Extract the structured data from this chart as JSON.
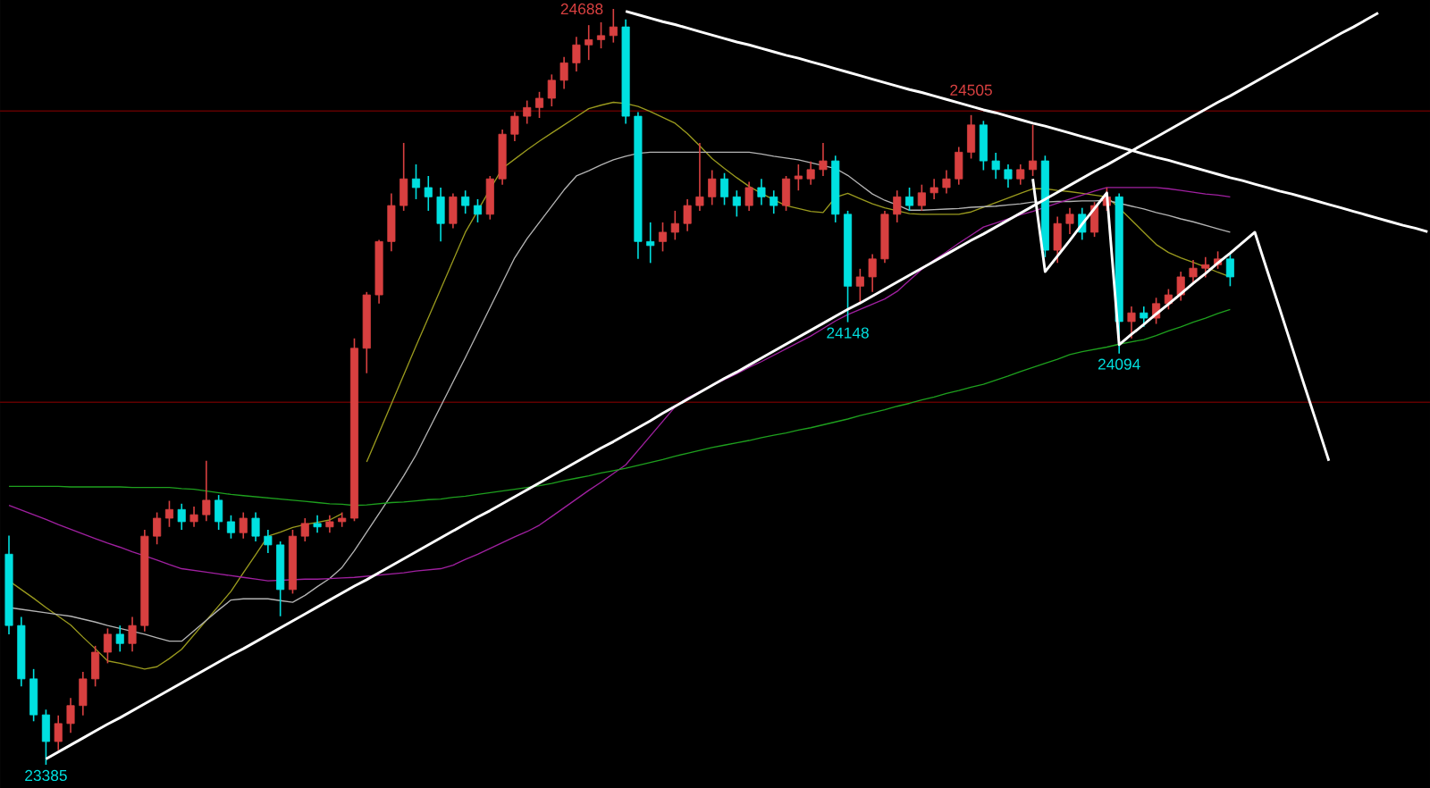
{
  "chart_data": {
    "type": "candlestick",
    "categories": [
      null,
      null,
      null,
      null,
      null,
      null,
      null,
      null,
      null,
      null,
      null,
      null,
      null,
      null,
      null,
      null,
      null,
      null,
      null,
      null,
      null,
      null,
      null,
      null,
      null,
      null,
      null,
      null,
      null,
      null,
      null,
      null,
      null,
      null,
      null,
      null,
      null,
      null,
      null,
      null,
      null,
      null,
      null,
      null,
      null,
      null,
      null,
      null,
      null,
      null,
      null,
      null,
      null,
      null,
      null,
      null,
      null,
      null,
      null,
      null,
      null,
      null,
      null,
      null,
      null,
      null,
      null,
      null,
      null,
      null,
      null,
      null,
      null,
      null,
      null,
      null,
      null,
      null,
      null,
      null,
      null,
      null,
      null,
      null,
      null,
      null,
      null,
      null,
      null,
      null,
      null,
      null,
      null,
      null,
      null,
      null,
      null,
      null,
      null,
      null,
      null,
      null,
      null,
      null,
      null,
      null,
      null,
      null,
      null,
      null,
      null,
      null,
      null,
      null,
      null,
      null
    ],
    "ohlc": [
      [
        23748,
        23780,
        23610,
        23625
      ],
      [
        23625,
        23640,
        23520,
        23533
      ],
      [
        23533,
        23550,
        23460,
        23471
      ],
      [
        23471,
        23480,
        23385,
        23425
      ],
      [
        23425,
        23470,
        23410,
        23456
      ],
      [
        23456,
        23500,
        23440,
        23487
      ],
      [
        23487,
        23545,
        23470,
        23533
      ],
      [
        23533,
        23590,
        23520,
        23579
      ],
      [
        23579,
        23620,
        23560,
        23610
      ],
      [
        23610,
        23625,
        23580,
        23594
      ],
      [
        23594,
        23640,
        23580,
        23625
      ],
      [
        23625,
        23790,
        23615,
        23779
      ],
      [
        23779,
        23820,
        23765,
        23810
      ],
      [
        23810,
        23840,
        23795,
        23825
      ],
      [
        23825,
        23835,
        23790,
        23804
      ],
      [
        23804,
        23830,
        23795,
        23816
      ],
      [
        23816,
        23909,
        23805,
        23841
      ],
      [
        23841,
        23850,
        23790,
        23804
      ],
      [
        23804,
        23815,
        23775,
        23785
      ],
      [
        23785,
        23820,
        23775,
        23810
      ],
      [
        23810,
        23820,
        23770,
        23779
      ],
      [
        23779,
        23790,
        23750,
        23764
      ],
      [
        23764,
        23770,
        23641,
        23687
      ],
      [
        23687,
        23790,
        23680,
        23779
      ],
      [
        23779,
        23810,
        23770,
        23801
      ],
      [
        23801,
        23815,
        23785,
        23795
      ],
      [
        23795,
        23815,
        23785,
        23804
      ],
      [
        23804,
        23820,
        23795,
        23810
      ],
      [
        23810,
        24120,
        23805,
        24103
      ],
      [
        24103,
        24200,
        24060,
        24195
      ],
      [
        24195,
        24290,
        24180,
        24287
      ],
      [
        24287,
        24370,
        24270,
        24349
      ],
      [
        24349,
        24457,
        24340,
        24395
      ],
      [
        24395,
        24420,
        24360,
        24380
      ],
      [
        24380,
        24400,
        24340,
        24364
      ],
      [
        24364,
        24380,
        24287,
        24318
      ],
      [
        24318,
        24370,
        24310,
        24364
      ],
      [
        24364,
        24375,
        24335,
        24349
      ],
      [
        24349,
        24360,
        24320,
        24334
      ],
      [
        24334,
        24400,
        24325,
        24395
      ],
      [
        24395,
        24480,
        24385,
        24472
      ],
      [
        24472,
        24510,
        24460,
        24503
      ],
      [
        24503,
        24530,
        24490,
        24518
      ],
      [
        24518,
        24545,
        24500,
        24534
      ],
      [
        24534,
        24575,
        24520,
        24565
      ],
      [
        24565,
        24605,
        24550,
        24595
      ],
      [
        24595,
        24640,
        24580,
        24626
      ],
      [
        24626,
        24660,
        24600,
        24635
      ],
      [
        24635,
        24665,
        24620,
        24642
      ],
      [
        24642,
        24688,
        24630,
        24657
      ],
      [
        24657,
        24670,
        24490,
        24503
      ],
      [
        24503,
        24510,
        24257,
        24287
      ],
      [
        24287,
        24320,
        24250,
        24280
      ],
      [
        24287,
        24320,
        24270,
        24303
      ],
      [
        24303,
        24340,
        24290,
        24318
      ],
      [
        24318,
        24360,
        24305,
        24349
      ],
      [
        24349,
        24457,
        24340,
        24364
      ],
      [
        24364,
        24410,
        24350,
        24395
      ],
      [
        24395,
        24405,
        24350,
        24364
      ],
      [
        24364,
        24375,
        24330,
        24349
      ],
      [
        24349,
        24390,
        24340,
        24380
      ],
      [
        24380,
        24395,
        24350,
        24364
      ],
      [
        24364,
        24375,
        24335,
        24349
      ],
      [
        24349,
        24400,
        24340,
        24395
      ],
      [
        24395,
        24420,
        24375,
        24400
      ],
      [
        24395,
        24425,
        24385,
        24411
      ],
      [
        24411,
        24457,
        24400,
        24426
      ],
      [
        24426,
        24435,
        24320,
        24334
      ],
      [
        24334,
        24340,
        24148,
        24210
      ],
      [
        24210,
        24240,
        24180,
        24226
      ],
      [
        24226,
        24265,
        24200,
        24257
      ],
      [
        24257,
        24340,
        24250,
        24334
      ],
      [
        24334,
        24375,
        24320,
        24364
      ],
      [
        24364,
        24380,
        24340,
        24349
      ],
      [
        24349,
        24385,
        24340,
        24371
      ],
      [
        24371,
        24395,
        24360,
        24380
      ],
      [
        24380,
        24410,
        24370,
        24395
      ],
      [
        24395,
        24450,
        24385,
        24441
      ],
      [
        24441,
        24505,
        24430,
        24488
      ],
      [
        24488,
        24495,
        24410,
        24426
      ],
      [
        24426,
        24440,
        24395,
        24411
      ],
      [
        24411,
        24420,
        24380,
        24395
      ],
      [
        24395,
        24420,
        24385,
        24411
      ],
      [
        24411,
        24488,
        24400,
        24426
      ],
      [
        24426,
        24435,
        24260,
        24272
      ],
      [
        24272,
        24330,
        24250,
        24318
      ],
      [
        24318,
        24345,
        24300,
        24334
      ],
      [
        24334,
        24345,
        24290,
        24303
      ],
      [
        24303,
        24355,
        24295,
        24349
      ],
      [
        24349,
        24380,
        24340,
        24364
      ],
      [
        24364,
        24370,
        24094,
        24149
      ],
      [
        24149,
        24175,
        24120,
        24164
      ],
      [
        24164,
        24175,
        24140,
        24155
      ],
      [
        24155,
        24190,
        24145,
        24180
      ],
      [
        24180,
        24205,
        24170,
        24195
      ],
      [
        24195,
        24235,
        24185,
        24226
      ],
      [
        24226,
        24255,
        24215,
        24241
      ],
      [
        24241,
        24260,
        24225,
        24247
      ],
      [
        24247,
        24270,
        24240,
        24257
      ],
      [
        24257,
        24265,
        24210,
        24226
      ],
      null,
      null,
      null,
      null,
      null,
      null,
      null,
      null,
      null,
      null,
      null,
      null,
      null,
      null,
      null,
      null
    ],
    "colors": [
      "#00e0e0",
      "#00e0e0",
      "#00e0e0",
      "#00e0e0",
      "#d84040",
      "#d84040",
      "#d84040",
      "#d84040",
      "#d84040",
      "#00e0e0",
      "#d84040",
      "#d84040",
      "#d84040",
      "#d84040",
      "#00e0e0",
      "#d84040",
      "#d84040",
      "#00e0e0",
      "#00e0e0",
      "#d84040",
      "#00e0e0",
      "#00e0e0",
      "#00e0e0",
      "#d84040",
      "#d84040",
      "#00e0e0",
      "#d84040",
      "#d84040",
      "#d84040",
      "#d84040",
      "#d84040",
      "#d84040",
      "#d84040",
      "#00e0e0",
      "#00e0e0",
      "#00e0e0",
      "#d84040",
      "#00e0e0",
      "#00e0e0",
      "#d84040",
      "#d84040",
      "#d84040",
      "#d84040",
      "#d84040",
      "#d84040",
      "#d84040",
      "#d84040",
      "#d84040",
      "#d84040",
      "#d84040",
      "#00e0e0",
      "#00e0e0",
      "#00e0e0",
      "#d84040",
      "#d84040",
      "#d84040",
      "#d84040",
      "#d84040",
      "#00e0e0",
      "#00e0e0",
      "#d84040",
      "#00e0e0",
      "#00e0e0",
      "#d84040",
      "#d84040",
      "#d84040",
      "#d84040",
      "#00e0e0",
      "#00e0e0",
      "#d84040",
      "#d84040",
      "#d84040",
      "#d84040",
      "#00e0e0",
      "#d84040",
      "#d84040",
      "#d84040",
      "#d84040",
      "#d84040",
      "#00e0e0",
      "#00e0e0",
      "#00e0e0",
      "#d84040",
      "#d84040",
      "#00e0e0",
      "#d84040",
      "#d84040",
      "#00e0e0",
      "#d84040",
      "#d84040",
      "#00e0e0",
      "#d84040",
      "#00e0e0",
      "#d84040",
      "#d84040",
      "#d84040",
      "#d84040",
      "#d84040",
      "#d84040",
      "#00e0e0",
      null,
      null,
      null,
      null,
      null,
      null,
      null,
      null,
      null,
      null,
      null,
      null,
      null,
      null,
      null,
      null
    ],
    "series": [
      {
        "type": "line",
        "color": "#9a9a1e",
        "values": [
          23702,
          23687,
          23672,
          23656,
          23641,
          23626,
          23605,
          23585,
          23564,
          23560,
          23555,
          23550,
          23554,
          23568,
          23584,
          23609,
          23634,
          23659,
          23684,
          23716,
          23747,
          23779,
          23786,
          23794,
          23799,
          23803,
          23807,
          23818,
          null,
          23907,
          23957,
          24007,
          24057,
          24107,
          24156,
          24205,
          24254,
          24303,
          24340,
          24377,
          24413,
          24429,
          24445,
          24460,
          24474,
          24488,
          24502,
          24516,
          24522,
          24527,
          24525,
          24520,
          24511,
          24501,
          24491,
          24473,
          24452,
          24430,
          24413,
          24397,
          24382,
          24370,
          24359,
          24349,
          24344,
          24339,
          24337,
          24363,
          24370,
          24361,
          24352,
          24345,
          24340,
          24335,
          24334,
          24334,
          24334,
          24334,
          24338,
          24346,
          24354,
          24362,
          24370,
          24378,
          24378,
          24375,
          24373,
          24370,
          24367,
          24364,
          24345,
          24324,
          24303,
          24282,
          24268,
          24259,
          24251,
          24243,
          24234,
          24226,
          null,
          null,
          null,
          null,
          null,
          null,
          null,
          null,
          null,
          null,
          null,
          null,
          null,
          null,
          null,
          null
        ]
      },
      {
        "type": "line",
        "color": "#b4b4b4",
        "values": [
          23656,
          23653,
          23650,
          23647,
          23644,
          23641,
          23636,
          23631,
          23625,
          23620,
          23615,
          23610,
          23604,
          23598,
          23598,
          23616,
          23634,
          23652,
          23669,
          23671,
          23671,
          23671,
          23668,
          23665,
          23677,
          23692,
          23706,
          23725,
          23754,
          23786,
          23818,
          23850,
          23883,
          23919,
          23961,
          24003,
          24045,
          24087,
          24130,
          24173,
          24216,
          24259,
          24292,
          24320,
          24348,
          24376,
          24400,
          24409,
          24419,
          24428,
          24434,
          24439,
          24441,
          24441,
          24441,
          24441,
          24441,
          24441,
          24441,
          24441,
          24441,
          24438,
          24434,
          24431,
          24428,
          24423,
          24418,
          24413,
          24401,
          24385,
          24369,
          24358,
          24350,
          24341,
          24341,
          24342,
          24343,
          24344,
          24346,
          24347,
          24348,
          24350,
          24352,
          24355,
          24355,
          24356,
          24356,
          24357,
          24357,
          24358,
          24353,
          24348,
          24343,
          24337,
          24332,
          24326,
          24321,
          24315,
          24309,
          24303,
          null,
          null,
          null,
          null,
          null,
          null,
          null,
          null,
          null,
          null,
          null,
          null,
          null,
          null,
          null,
          null
        ]
      },
      {
        "type": "line",
        "color": "#a020a0",
        "values": [
          23832,
          23824,
          23816,
          23808,
          23799,
          23791,
          23783,
          23775,
          23767,
          23760,
          23752,
          23745,
          23738,
          23730,
          23723,
          23720,
          23717,
          23714,
          23711,
          23708,
          23705,
          23702,
          23703,
          23704,
          23705,
          23705,
          23706,
          23707,
          23708,
          23710,
          23712,
          23714,
          23716,
          23719,
          23721,
          23723,
          23729,
          23739,
          23748,
          23758,
          23768,
          23778,
          23787,
          23798,
          23813,
          23828,
          23843,
          23858,
          23872,
          23887,
          23902,
          23927,
          23952,
          23977,
          24002,
          24017,
          24028,
          24039,
          24049,
          24059,
          24070,
          24080,
          24091,
          24102,
          24113,
          24124,
          24137,
          24150,
          24161,
          24170,
          24179,
          24188,
          24201,
          24220,
          24239,
          24255,
          24269,
          24284,
          24298,
          24312,
          24319,
          24326,
          24333,
          24339,
          24346,
          24353,
          24360,
          24367,
          24374,
          24380,
          24380,
          24380,
          24380,
          24380,
          24378,
          24375,
          24372,
          24369,
          24367,
          24364,
          null,
          null,
          null,
          null,
          null,
          null,
          null,
          null,
          null,
          null,
          null,
          null,
          null,
          null,
          null,
          null
        ]
      },
      {
        "type": "line",
        "color": "#1ea01e",
        "values": [
          23865,
          23865,
          23865,
          23865,
          23865,
          23864,
          23864,
          23864,
          23864,
          23864,
          23863,
          23863,
          23863,
          23863,
          23861,
          23860,
          23857,
          23854,
          23851,
          23849,
          23847,
          23845,
          23843,
          23841,
          23839,
          23837,
          23835,
          23834,
          23832,
          23833,
          23835,
          23837,
          23838,
          23840,
          23842,
          23843,
          23846,
          23848,
          23851,
          23854,
          23857,
          23860,
          23863,
          23866,
          23870,
          23875,
          23879,
          23883,
          23888,
          23892,
          23896,
          23901,
          23906,
          23911,
          23917,
          23922,
          23927,
          23932,
          23936,
          23940,
          23944,
          23949,
          23953,
          23957,
          23962,
          23966,
          23971,
          23976,
          23981,
          23987,
          23992,
          23997,
          24003,
          24008,
          24014,
          24019,
          24025,
          24030,
          24036,
          24041,
          24048,
          24055,
          24063,
          24070,
          24077,
          24084,
          24092,
          24097,
          24101,
          24105,
          24110,
          24114,
          24118,
          24125,
          24133,
          24140,
          24148,
          24155,
          24163,
          24170,
          null,
          null,
          null,
          null,
          null,
          null,
          null,
          null,
          null,
          null,
          null,
          null,
          null,
          null,
          null,
          null
        ]
      },
      {
        "type": "line",
        "color": "#ffffff",
        "values": [
          null,
          null,
          null,
          23395,
          23407,
          23419,
          23431,
          23443,
          23455,
          23466,
          23478,
          23490,
          23502,
          23514,
          23526,
          23538,
          23550,
          23562,
          23574,
          23585,
          23597,
          23609,
          23621,
          23633,
          23645,
          23657,
          23669,
          23681,
          23693,
          23704,
          23716,
          23728,
          23740,
          23752,
          23764,
          23776,
          23788,
          23800,
          23812,
          23823,
          23835,
          23847,
          23859,
          23871,
          23883,
          23895,
          23907,
          23919,
          23931,
          23942,
          23954,
          23966,
          23978,
          23991,
          24003,
          24015,
          24027,
          24039,
          24051,
          24062,
          24074,
          24086,
          24098,
          24110,
          24122,
          24134,
          24146,
          24158,
          24170,
          24181,
          24193,
          24205,
          24217,
          24229,
          24241,
          24253,
          24265,
          24277,
          24289,
          24300,
          24312,
          24324,
          24336,
          24348,
          24360,
          24372,
          24384,
          24396,
          24408,
          24419,
          24431,
          24443,
          24455,
          24467,
          24479,
          24491,
          24503,
          24515,
          24527,
          24538,
          24550,
          24562,
          24574,
          24586,
          24598,
          24610,
          24622,
          24634,
          24646,
          24657,
          24669,
          24681,
          null,
          null,
          null,
          null
        ]
      },
      {
        "type": "line",
        "color": "#ffffff",
        "values": [
          null,
          null,
          null,
          null,
          null,
          null,
          null,
          null,
          null,
          null,
          null,
          null,
          null,
          null,
          null,
          null,
          null,
          null,
          null,
          null,
          null,
          null,
          null,
          null,
          null,
          null,
          null,
          null,
          null,
          null,
          null,
          null,
          null,
          null,
          null,
          null,
          null,
          null,
          null,
          null,
          null,
          null,
          null,
          null,
          null,
          null,
          null,
          null,
          null,
          null,
          24684,
          24678,
          24672,
          24666,
          24661,
          24655,
          24649,
          24643,
          24637,
          24631,
          24626,
          24620,
          24614,
          24608,
          24603,
          24597,
          24591,
          24585,
          24579,
          24573,
          24567,
          24561,
          24555,
          24549,
          24544,
          24538,
          24532,
          24526,
          24520,
          24514,
          24509,
          24503,
          24497,
          24491,
          24486,
          24480,
          24474,
          24468,
          24462,
          24456,
          24450,
          24444,
          24438,
          24432,
          24427,
          24421,
          24415,
          24409,
          24403,
          24397,
          24392,
          24386,
          24380,
          24374,
          24369,
          24363,
          24357,
          24351,
          24345,
          24339,
          24333,
          24327,
          24321,
          24315,
          24310,
          24304
        ]
      },
      {
        "type": "line",
        "color": "#ffffff",
        "values": [
          null,
          null,
          null,
          null,
          null,
          null,
          null,
          null,
          null,
          null,
          null,
          null,
          null,
          null,
          null,
          null,
          null,
          null,
          null,
          null,
          null,
          null,
          null,
          null,
          null,
          null,
          null,
          null,
          null,
          null,
          null,
          null,
          null,
          null,
          null,
          null,
          null,
          null,
          null,
          null,
          null,
          null,
          null,
          null,
          null,
          null,
          null,
          null,
          null,
          null,
          null,
          null,
          null,
          null,
          null,
          null,
          null,
          null,
          null,
          null,
          null,
          null,
          null,
          null,
          null,
          null,
          null,
          null,
          null,
          null,
          null,
          null,
          null,
          null,
          null,
          null,
          null,
          null,
          null,
          null,
          null,
          null,
          null,
          24395,
          24235,
          24262,
          24289,
          24317,
          24344,
          24371,
          24109,
          24127,
          24144,
          24162,
          24179,
          24197,
          24215,
          24232,
          24250,
          24267,
          24285,
          24303,
          24237,
          24172,
          24106,
          24040,
          23975,
          23909,
          null,
          null,
          null,
          null,
          null,
          null,
          null,
          null
        ]
      }
    ],
    "ref_lines": [
      {
        "axis": "y",
        "value": 24512,
        "color": "#600000"
      },
      {
        "axis": "y",
        "value": 24010,
        "color": "#600000"
      }
    ],
    "annotations": [
      "24688",
      {
        "text": "24505",
        "y": 24505
      },
      {
        "text": "24148",
        "y": 24148
      },
      {
        "text": "24094",
        "y": 24094
      },
      {
        "text": "23385",
        "y": 23385
      }
    ]
  }
}
